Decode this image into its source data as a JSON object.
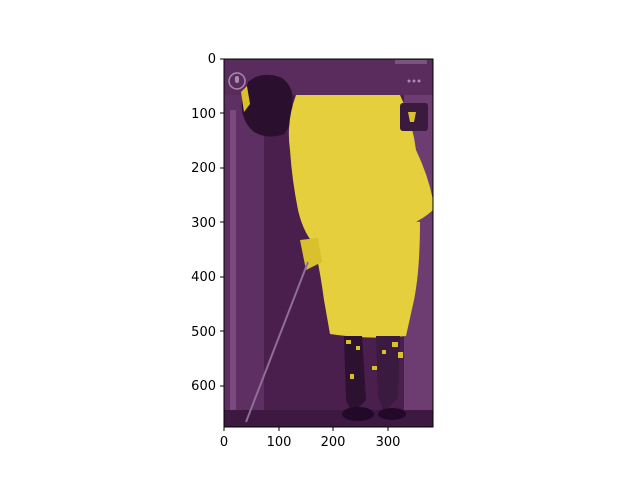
{
  "figure": {
    "x_ticks": [
      "0",
      "100",
      "200",
      "300"
    ],
    "y_ticks": [
      "0",
      "100",
      "200",
      "300",
      "400",
      "500",
      "600"
    ]
  },
  "image": {
    "description_colors": {
      "background_dark": "#4a1f4e",
      "background_mid": "#6a3a6e",
      "mask_yellow": "#e6cf3c",
      "mask_yellow_dark": "#d9c12e"
    },
    "overlay_icons": [
      "mic-icon",
      "more-dots-icon",
      "app-thumbnail-icon"
    ]
  }
}
